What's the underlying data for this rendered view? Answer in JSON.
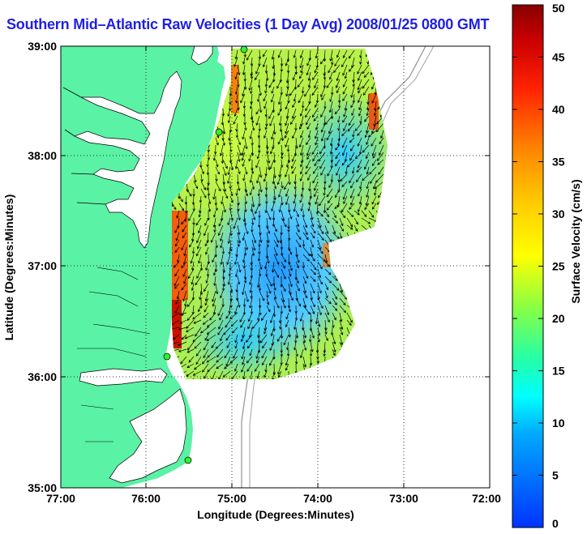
{
  "title": "Southern Mid–Atlantic Raw Velocities (1 Day Avg) 2008/01/25 0800 GMT",
  "xlabel": "Longitude (Degrees:Minutes)",
  "ylabel": "Latitude (Degrees:Minutes)",
  "x_ticks": [
    "77:00",
    "76:00",
    "75:00",
    "74:00",
    "73:00",
    "72:00"
  ],
  "y_ticks": [
    "39:00",
    "38:00",
    "37:00",
    "36:00",
    "35:00"
  ],
  "colorbar": {
    "label": "Surface Velocity (cm/s)",
    "ticks": [
      "0",
      "5",
      "10",
      "15",
      "20",
      "25",
      "30",
      "35",
      "40",
      "45",
      "50"
    ],
    "min": 0,
    "max": 50
  },
  "colors": {
    "land": "#5af2a5",
    "water": "#ffffff",
    "title": "#1f1fe6",
    "stations": "#33ee33"
  }
}
